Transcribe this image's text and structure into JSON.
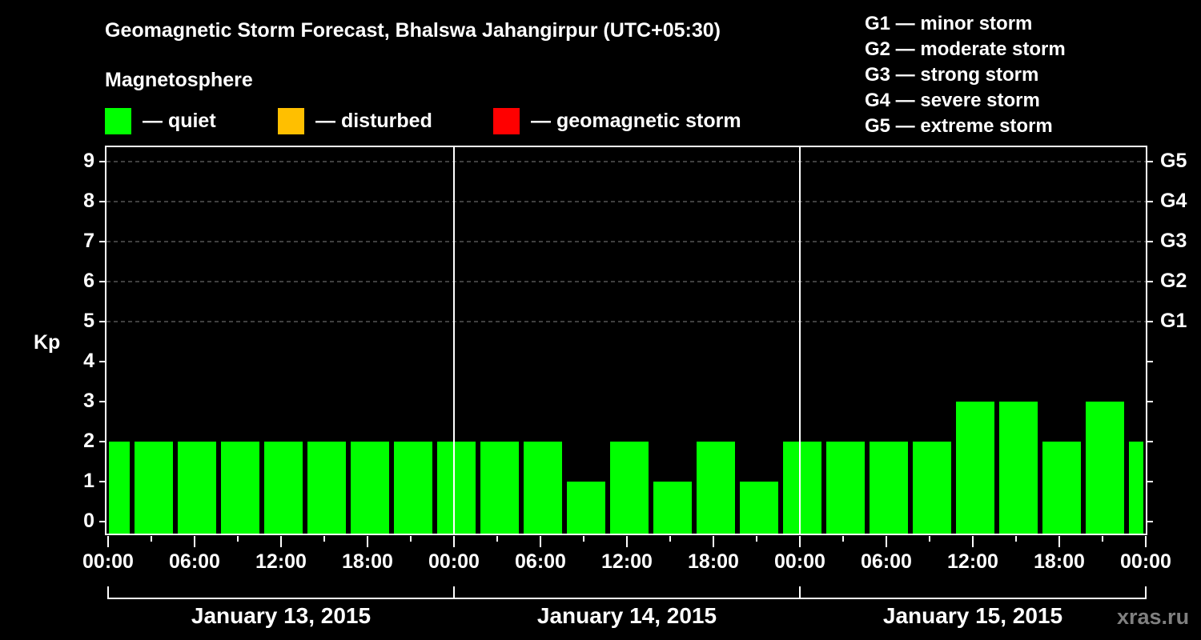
{
  "title": "Geomagnetic Storm Forecast, Bhalswa Jahangirpur (UTC+05:30)",
  "legend": {
    "heading": "Magnetosphere",
    "items": [
      {
        "label": "— quiet",
        "color": "#00ff00"
      },
      {
        "label": "— disturbed",
        "color": "#ffbf00"
      },
      {
        "label": "— geomagnetic storm",
        "color": "#ff0000"
      }
    ]
  },
  "storm_scale": [
    "G1 — minor storm",
    "G2 — moderate storm",
    "G3 — strong storm",
    "G4 — severe storm",
    "G5 — extreme storm"
  ],
  "y_axis": {
    "label": "Kp",
    "ticks": [
      "0",
      "1",
      "2",
      "3",
      "4",
      "5",
      "6",
      "7",
      "8",
      "9"
    ]
  },
  "right_axis": {
    "ticks": [
      "G1",
      "G2",
      "G3",
      "G4",
      "G5"
    ]
  },
  "x_axis": {
    "ticks": [
      "00:00",
      "06:00",
      "12:00",
      "18:00",
      "00:00",
      "06:00",
      "12:00",
      "18:00",
      "00:00",
      "06:00",
      "12:00",
      "18:00",
      "00:00"
    ],
    "dates": [
      "January 13, 2015",
      "January 14, 2015",
      "January 15, 2015"
    ]
  },
  "watermark": "xras.ru",
  "chart_data": {
    "type": "bar",
    "title": "Geomagnetic Storm Forecast, Bhalswa Jahangirpur (UTC+05:30)",
    "xlabel": "",
    "ylabel": "Kp",
    "ylim": [
      0,
      9
    ],
    "grid": "dashed horizontal at Kp 5-9",
    "secondary_y_ticks": {
      "5": "G1",
      "6": "G2",
      "7": "G3",
      "8": "G4",
      "9": "G5"
    },
    "categories": [
      "Jan 13 ~00:00",
      "Jan 13 ~02:30",
      "Jan 13 ~05:30",
      "Jan 13 ~08:30",
      "Jan 13 ~11:30",
      "Jan 13 ~14:30",
      "Jan 13 ~17:30",
      "Jan 13 ~20:30",
      "Jan 13 ~23:30",
      "Jan 14 ~02:30",
      "Jan 14 ~05:30",
      "Jan 14 ~08:30",
      "Jan 14 ~11:30",
      "Jan 14 ~14:30",
      "Jan 14 ~17:30",
      "Jan 14 ~20:30",
      "Jan 14 ~23:30",
      "Jan 15 ~02:30",
      "Jan 15 ~05:30",
      "Jan 15 ~08:30",
      "Jan 15 ~11:30",
      "Jan 15 ~14:30",
      "Jan 15 ~17:30",
      "Jan 15 ~20:30",
      "Jan 15 ~23:30"
    ],
    "values": [
      2,
      2,
      2,
      2,
      2,
      2,
      2,
      2,
      2,
      2,
      2,
      1,
      2,
      1,
      2,
      1,
      2,
      2,
      2,
      2,
      3,
      3,
      2,
      3,
      2
    ],
    "series_color": "#00ff00",
    "legend": [
      "quiet",
      "disturbed",
      "geomagnetic storm"
    ]
  }
}
